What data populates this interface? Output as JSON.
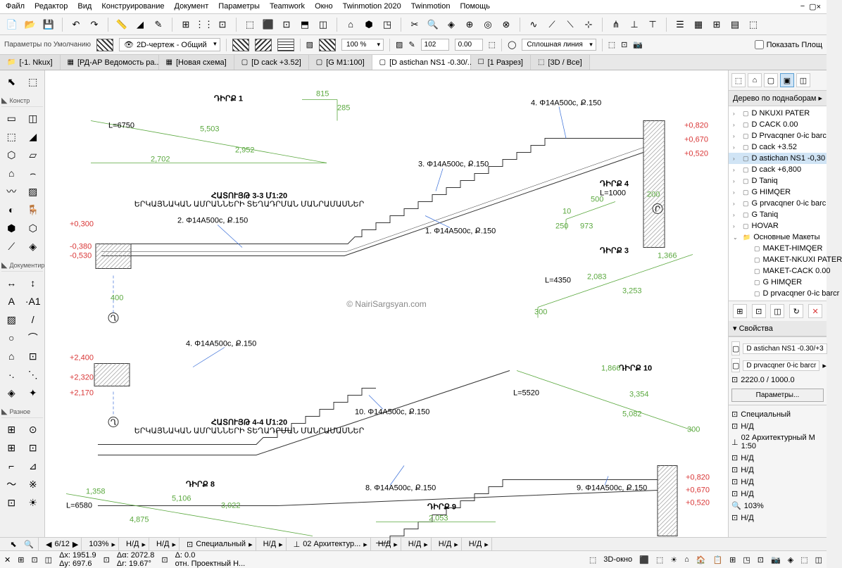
{
  "menu": [
    "Файл",
    "Редактор",
    "Вид",
    "Конструирование",
    "Документ",
    "Параметры",
    "Teamwork",
    "Окно",
    "Twinmotion 2020",
    "Twinmotion",
    "Помощь"
  ],
  "toolbar2": {
    "label": "Параметры по Умолчанию",
    "layer": "2D-чертеж - Общий",
    "pct": "100 %",
    "val1": "102",
    "val2": "0.00",
    "line": "Сплошная линия",
    "show": "Показать Площ"
  },
  "tabs": [
    {
      "ico": "📁",
      "t": "[-1. Nkux]"
    },
    {
      "ico": "▦",
      "t": "[РД-АР Ведомость ра..."
    },
    {
      "ico": "▦",
      "t": "[Новая схема]"
    },
    {
      "ico": "▢",
      "t": "[D cack +3.52]"
    },
    {
      "ico": "▢",
      "t": "[G M1:100]"
    },
    {
      "ico": "▢",
      "t": "[D astichan NS1 -0.30/...",
      "active": true,
      "close": true
    },
    {
      "ico": "☐",
      "t": "[1 Разрез]"
    },
    {
      "ico": "⬚",
      "t": "[3D / Все]"
    }
  ],
  "toolbox": {
    "sections": [
      {
        "title": "Констр",
        "chev": "◣",
        "tools": [
          "▭",
          "◫",
          "⬚",
          "◢",
          "⬡",
          "▱",
          "⌂",
          "⌢",
          "〰",
          "▨",
          "◐",
          "🪑",
          "⬢",
          "⬡",
          "⟋",
          "◈"
        ]
      },
      {
        "title": "Документир",
        "chev": "◣",
        "tools": [
          "↔",
          "↕",
          "A",
          "·A1",
          "▨",
          "/",
          "○",
          "⌒",
          "⌂",
          "⊡",
          "·.",
          "⋱",
          "◈",
          "✦"
        ]
      },
      {
        "title": "Разное",
        "chev": "◣",
        "tools": [
          "⊞",
          "⊙",
          "⊞",
          "⊡",
          "⌐",
          "⊿",
          "〜",
          "※",
          "⊡",
          "☀"
        ]
      }
    ],
    "top": [
      "⬉",
      "⬚"
    ]
  },
  "drawing": {
    "sec33_title": "ՀԱՏՈՒՅԹ 3-3  Մ1:20",
    "sec33_sub": "ԵՐԿԱՅՆԱԿԱՆ ԱՄՐԱՆՆԵՐԻ ՏԵՂԱԴՐՄԱՆ ՄԱՆՐԱՄԱՍՆԵՐ",
    "sec44_title": "ՀԱՏՈՒՅԹ 4-4  Մ1:20",
    "sec44_sub": "ԵՐԿԱՅՆԱԿԱՆ ԱՄՐԱՆՆԵՐԻ ՏԵՂԱԴՐՄԱՆ ՄԱՆՐԱՄԱՍՆԵՐ",
    "d1": "ԴԻՐՔ 1",
    "d4": "ԴԻՐՔ 4",
    "d3": "ԴԻՐՔ 3",
    "d8": "ԴԻՐՔ 8",
    "d9": "ԴԻՐՔ 9",
    "d10": "ԴԻՐՔ 10",
    "l6750": "L=6750",
    "l1000": "L=1000",
    "l4350": "L=4350",
    "l5520": "L=5520",
    "l6580": "L=6580",
    "r1": "1. Φ14A500c, Ք.150",
    "r2": "2. Φ14A500c, Ք.150",
    "r3": "3. Φ14A500c, Ք.150",
    "r4": "4. Φ14A500c, Ք.150",
    "r8": "8. Φ14A500c, Ք.150",
    "r9": "9. Φ14A500c, Ք.150",
    "r10": "10. Φ14A500c, Ք.150",
    "dim815": "815",
    "dim285": "285",
    "dim5503": "5,503",
    "dim2952": "2,952",
    "dim2702": "2,702",
    "dim400": "400",
    "dim500": "500",
    "dim200": "200",
    "dim250": "250",
    "dim10": "10",
    "dim973": "973",
    "dim1366": "1,366",
    "dim2083": "2,083",
    "dim3253": "3,253",
    "dim300": "300",
    "dim1866": "1,866",
    "dim3354": "3,354",
    "dim5082": "5,082",
    "dim1358": "1,358",
    "dim3022": "3,022",
    "dim5106": "5,106",
    "dim4875": "4,875",
    "dim2053": "2,053",
    "lvl_p0820": "+0,820",
    "lvl_p0670": "+0,670",
    "lvl_p0520": "+0,520",
    "lvl_p0300": "+0,300",
    "lvl_m0380": "-0,380",
    "lvl_m0530": "-0,530",
    "lvl_p2400": "+2,400",
    "lvl_p2320": "+2,320",
    "lvl_p2170": "+2,170",
    "mark_q": "Ղ",
    "mark_p": "Ր",
    "color_green": "#5aa83e",
    "color_red": "#d93636",
    "color_blue": "#3a6fd8",
    "color_gray": "#333"
  },
  "watermark": "© NairiSargsyan.com",
  "navigator": {
    "title": "Дерево по поднаборам",
    "items": [
      {
        "exp": "›",
        "ico": "▢",
        "t": "D NKUXI PATER"
      },
      {
        "exp": "›",
        "ico": "▢",
        "t": "D CACK 0.00"
      },
      {
        "exp": "›",
        "ico": "▢",
        "t": "D Prvacqner 0-ic barc"
      },
      {
        "exp": "›",
        "ico": "▢",
        "t": "D cack +3.52"
      },
      {
        "exp": "›",
        "ico": "▢",
        "t": "D astichan NS1 -0,30",
        "sel": true
      },
      {
        "exp": "›",
        "ico": "▢",
        "t": "D cack +6,800"
      },
      {
        "exp": "›",
        "ico": "▢",
        "t": "D Taniq"
      },
      {
        "exp": "›",
        "ico": "▢",
        "t": "G HIMQER"
      },
      {
        "exp": "›",
        "ico": "▢",
        "t": "G prvacqner 0-ic barc"
      },
      {
        "exp": "›",
        "ico": "▢",
        "t": "G Taniq"
      },
      {
        "exp": "›",
        "ico": "▢",
        "t": "HOVAR"
      },
      {
        "exp": "⌄",
        "ico": "📁",
        "t": "Основные Макеты"
      },
      {
        "sub": true,
        "ico": "▢",
        "t": "MAKET-HIMQER"
      },
      {
        "sub": true,
        "ico": "▢",
        "t": "MAKET-NKUXI PATER"
      },
      {
        "sub": true,
        "ico": "▢",
        "t": "MAKET-CACK 0.00"
      },
      {
        "sub": true,
        "ico": "▢",
        "t": "G HIMQER"
      },
      {
        "sub": true,
        "ico": "▢",
        "t": "D prvacqner 0-ic barcr"
      }
    ],
    "props_title": "Свойства",
    "f1": "D astichan NS1 -0.30/+3",
    "f2": "D prvacqner 0-ic barcr",
    "f3": "2220.0 / 1000.0",
    "params_btn": "Параметры...",
    "special": "Специальный",
    "nd": "Н/Д",
    "arch": "02 Архитектурный М 1:50",
    "pct": "103%"
  },
  "statusbar": {
    "page": "6/12",
    "zoom": "103%",
    "nd": "Н/Д",
    "layer": "Специальный",
    "arch": "02 Архитектур...",
    "d3": "3D-окно"
  },
  "status2": {
    "dx": "Δx: 1951.9",
    "dy": "Δy: 697.6",
    "da": "Δα: 2072.8",
    "dr": "Δr: 19.67°",
    "d": "Δ: 0.0",
    "rel": "отн. Проектный Н..."
  }
}
